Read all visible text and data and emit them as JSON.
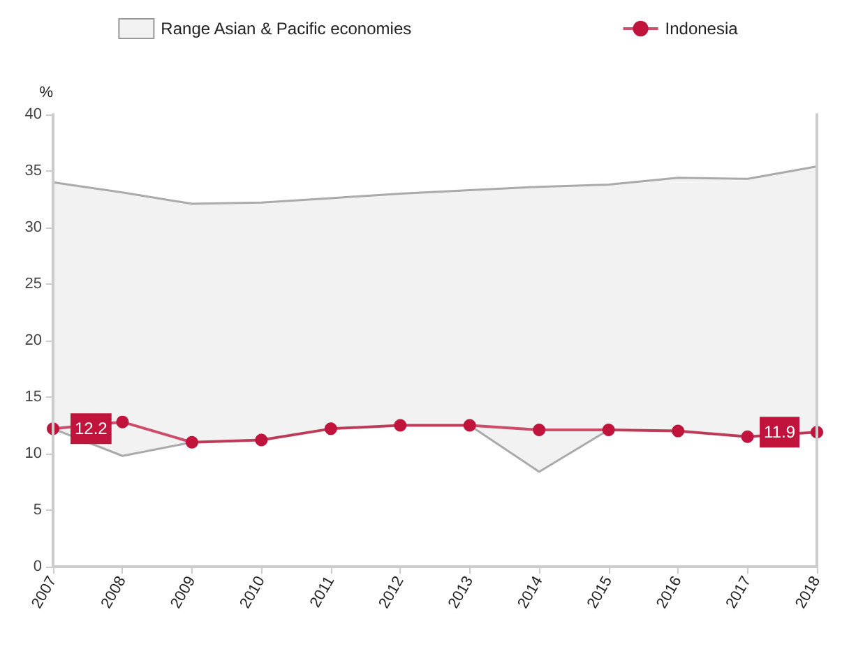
{
  "chart_data": {
    "type": "area",
    "ylabel": "%",
    "categories": [
      "2007",
      "2008",
      "2009",
      "2010",
      "2011",
      "2012",
      "2013",
      "2014",
      "2015",
      "2016",
      "2017",
      "2018"
    ],
    "series": [
      {
        "name": "Range Asian & Pacific economies",
        "color": "#f2f2f2",
        "values": [
          null,
          null,
          null,
          null,
          null,
          null,
          null,
          null,
          null,
          null,
          null,
          null
        ],
        "upper": [
          34.0,
          33.1,
          32.1,
          32.2,
          32.6,
          33.0,
          33.3,
          33.6,
          33.8,
          34.4,
          34.3,
          35.4
        ],
        "lower": [
          12.2,
          9.8,
          11.0,
          11.2,
          12.2,
          12.5,
          12.5,
          8.4,
          12.1,
          12.0,
          11.5,
          11.9
        ]
      },
      {
        "name": "Indonesia",
        "type": "line",
        "marker": "circle",
        "color": "#c0143c",
        "values": [
          12.2,
          12.8,
          11.0,
          11.2,
          12.2,
          12.5,
          12.5,
          12.1,
          12.1,
          12.0,
          11.5,
          11.9
        ],
        "value_labels": [
          "12.2",
          null,
          null,
          null,
          null,
          null,
          null,
          null,
          null,
          null,
          null,
          "11.9"
        ]
      }
    ],
    "ylim": [
      0,
      40
    ],
    "yticks": [
      0,
      5,
      10,
      15,
      20,
      25,
      30,
      35,
      40
    ],
    "grid": false,
    "legend": "top",
    "line_style": "solid"
  }
}
